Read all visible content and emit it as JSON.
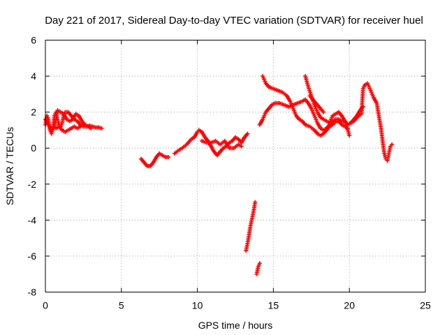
{
  "chart_data": {
    "type": "scatter",
    "title": "Day 221 of 2017, Sidereal Day-to-day VTEC variation (SDTVAR) for receiver huel",
    "xlabel": "GPS time / hours",
    "ylabel": "SDTVAR / TECUs",
    "xlim": [
      0,
      25
    ],
    "ylim": [
      -8,
      6
    ],
    "x_ticks": [
      0,
      5,
      10,
      15,
      20,
      25
    ],
    "y_ticks": [
      -8,
      -6,
      -4,
      -2,
      0,
      2,
      4,
      6
    ],
    "grid": true,
    "marker": "plus",
    "color": "#ff0000",
    "segments": [
      [
        [
          0.0,
          1.3
        ],
        [
          0.1,
          1.8
        ],
        [
          0.2,
          1.6
        ],
        [
          0.3,
          1.0
        ],
        [
          0.4,
          0.8
        ],
        [
          0.5,
          1.1
        ],
        [
          0.55,
          1.5
        ],
        [
          0.6,
          1.8
        ],
        [
          0.7,
          2.0
        ],
        [
          0.8,
          1.6
        ],
        [
          0.9,
          1.3
        ],
        [
          1.0,
          1.2
        ],
        [
          1.1,
          1.4
        ],
        [
          1.2,
          1.8
        ],
        [
          1.3,
          2.0
        ],
        [
          1.5,
          2.0
        ],
        [
          1.7,
          1.8
        ],
        [
          1.9,
          1.6
        ],
        [
          2.1,
          1.5
        ],
        [
          2.3,
          1.3
        ],
        [
          2.5,
          1.2
        ],
        [
          2.7,
          1.2
        ],
        [
          2.9,
          1.25
        ],
        [
          3.1,
          1.2
        ],
        [
          3.3,
          1.15
        ],
        [
          3.5,
          1.15
        ],
        [
          3.7,
          1.1
        ]
      ],
      [
        [
          0.0,
          1.6
        ],
        [
          0.2,
          1.3
        ],
        [
          0.4,
          1.0
        ],
        [
          0.6,
          1.2
        ],
        [
          0.8,
          2.1
        ],
        [
          1.0,
          2.0
        ],
        [
          1.2,
          1.9
        ],
        [
          1.4,
          1.6
        ],
        [
          1.6,
          1.5
        ],
        [
          1.8,
          1.6
        ],
        [
          2.0,
          1.9
        ],
        [
          2.2,
          1.8
        ],
        [
          2.4,
          1.5
        ],
        [
          2.6,
          1.3
        ],
        [
          2.8,
          1.2
        ],
        [
          3.0,
          1.1
        ]
      ],
      [
        [
          0.7,
          1.1
        ],
        [
          0.9,
          1.2
        ],
        [
          1.1,
          1.0
        ],
        [
          1.3,
          0.9
        ],
        [
          1.5,
          1.0
        ],
        [
          1.7,
          1.1
        ],
        [
          1.9,
          1.2
        ],
        [
          2.1,
          1.1
        ],
        [
          2.3,
          1.2
        ],
        [
          2.5,
          1.3
        ]
      ],
      [
        [
          6.3,
          -0.6
        ],
        [
          6.5,
          -0.8
        ],
        [
          6.7,
          -1.0
        ],
        [
          6.9,
          -1.0
        ],
        [
          7.1,
          -0.8
        ],
        [
          7.3,
          -0.5
        ],
        [
          7.5,
          -0.3
        ],
        [
          7.7,
          -0.4
        ],
        [
          7.9,
          -0.5
        ],
        [
          8.1,
          -0.5
        ]
      ],
      [
        [
          8.5,
          -0.3
        ],
        [
          8.8,
          -0.1
        ],
        [
          9.0,
          0.0
        ],
        [
          9.3,
          0.2
        ],
        [
          9.6,
          0.5
        ],
        [
          9.8,
          0.6
        ],
        [
          10.0,
          0.9
        ],
        [
          10.1,
          1.0
        ],
        [
          10.3,
          0.9
        ],
        [
          10.5,
          0.6
        ],
        [
          10.7,
          0.4
        ],
        [
          10.9,
          0.1
        ],
        [
          11.1,
          -0.2
        ],
        [
          11.3,
          -0.4
        ],
        [
          11.5,
          -0.2
        ],
        [
          11.7,
          0.0
        ],
        [
          11.9,
          0.1
        ],
        [
          12.1,
          0.3
        ],
        [
          12.3,
          0.4
        ],
        [
          12.5,
          0.6
        ],
        [
          12.7,
          0.5
        ],
        [
          12.9,
          0.3
        ],
        [
          13.1,
          0.6
        ],
        [
          13.3,
          0.8
        ]
      ],
      [
        [
          10.3,
          0.4
        ],
        [
          10.6,
          0.3
        ],
        [
          10.9,
          0.3
        ],
        [
          11.2,
          0.4
        ],
        [
          11.5,
          0.2
        ],
        [
          11.8,
          0.4
        ],
        [
          12.1,
          0.0
        ],
        [
          12.4,
          0.0
        ],
        [
          12.7,
          0.2
        ],
        [
          12.9,
          0.1
        ]
      ],
      [
        [
          13.2,
          -5.7
        ],
        [
          13.3,
          -5.3
        ],
        [
          13.4,
          -4.8
        ],
        [
          13.5,
          -4.3
        ],
        [
          13.6,
          -3.9
        ],
        [
          13.7,
          -3.5
        ],
        [
          13.8,
          -3.0
        ]
      ],
      [
        [
          13.9,
          -7.0
        ],
        [
          14.0,
          -6.6
        ],
        [
          14.1,
          -6.4
        ]
      ],
      [
        [
          14.1,
          1.3
        ],
        [
          14.3,
          1.6
        ],
        [
          14.5,
          2.0
        ],
        [
          14.7,
          2.2
        ],
        [
          14.9,
          2.4
        ],
        [
          15.1,
          2.5
        ],
        [
          15.4,
          2.5
        ],
        [
          15.7,
          2.4
        ],
        [
          16.0,
          2.3
        ],
        [
          16.3,
          2.4
        ],
        [
          16.6,
          2.5
        ],
        [
          16.9,
          2.6
        ],
        [
          17.1,
          2.7
        ],
        [
          17.3,
          2.5
        ],
        [
          17.5,
          2.2
        ],
        [
          17.7,
          1.8
        ],
        [
          17.9,
          1.4
        ],
        [
          18.1,
          1.1
        ],
        [
          18.3,
          1.0
        ],
        [
          18.5,
          1.1
        ],
        [
          18.7,
          1.3
        ],
        [
          18.9,
          1.5
        ],
        [
          19.1,
          1.6
        ],
        [
          19.3,
          1.6
        ],
        [
          19.5,
          1.5
        ],
        [
          19.7,
          1.5
        ],
        [
          19.9,
          1.3
        ],
        [
          20.1,
          1.4
        ],
        [
          20.3,
          1.6
        ],
        [
          20.5,
          1.8
        ],
        [
          20.7,
          2.1
        ],
        [
          20.9,
          2.3
        ]
      ],
      [
        [
          14.3,
          4.0
        ],
        [
          14.5,
          3.6
        ],
        [
          14.7,
          3.4
        ],
        [
          15.0,
          3.3
        ],
        [
          15.3,
          3.2
        ],
        [
          15.6,
          3.1
        ],
        [
          15.9,
          2.9
        ],
        [
          16.1,
          2.6
        ],
        [
          16.3,
          2.2
        ],
        [
          16.5,
          1.8
        ],
        [
          16.7,
          1.6
        ],
        [
          16.9,
          1.5
        ],
        [
          17.1,
          1.3
        ],
        [
          17.4,
          1.2
        ],
        [
          17.7,
          1.0
        ],
        [
          17.9,
          0.8
        ],
        [
          18.1,
          0.7
        ],
        [
          18.3,
          0.8
        ],
        [
          18.5,
          1.0
        ],
        [
          18.7,
          1.2
        ],
        [
          18.9,
          1.3
        ],
        [
          19.1,
          1.5
        ],
        [
          19.3,
          1.5
        ],
        [
          19.5,
          1.3
        ],
        [
          19.7,
          1.2
        ],
        [
          19.9,
          1.1
        ]
      ],
      [
        [
          17.1,
          4.0
        ],
        [
          17.3,
          3.4
        ],
        [
          17.5,
          2.9
        ],
        [
          17.7,
          2.4
        ],
        [
          17.9,
          2.0
        ],
        [
          18.1,
          1.7
        ],
        [
          18.3,
          1.6
        ],
        [
          18.5,
          1.5
        ],
        [
          18.7,
          1.4
        ],
        [
          18.9,
          1.8
        ],
        [
          19.1,
          1.9
        ],
        [
          19.3,
          2.0
        ],
        [
          19.5,
          1.8
        ],
        [
          19.7,
          1.5
        ],
        [
          19.9,
          1.0
        ],
        [
          20.0,
          0.7
        ]
      ],
      [
        [
          17.4,
          2.9
        ],
        [
          17.7,
          2.6
        ],
        [
          18.0,
          2.3
        ],
        [
          18.3,
          2.0
        ]
      ],
      [
        [
          20.1,
          1.4
        ],
        [
          20.3,
          1.5
        ],
        [
          20.5,
          1.7
        ],
        [
          20.8,
          1.9
        ],
        [
          20.9,
          3.3
        ],
        [
          21.0,
          3.5
        ],
        [
          21.2,
          3.6
        ],
        [
          21.4,
          3.2
        ],
        [
          21.6,
          2.8
        ],
        [
          21.8,
          2.5
        ],
        [
          21.9,
          2.0
        ],
        [
          22.0,
          1.5
        ],
        [
          22.1,
          1.0
        ],
        [
          22.2,
          0.3
        ],
        [
          22.3,
          -0.3
        ],
        [
          22.4,
          -0.6
        ],
        [
          22.5,
          -0.7
        ],
        [
          22.6,
          -0.3
        ],
        [
          22.7,
          0.1
        ],
        [
          22.8,
          0.2
        ]
      ]
    ]
  }
}
